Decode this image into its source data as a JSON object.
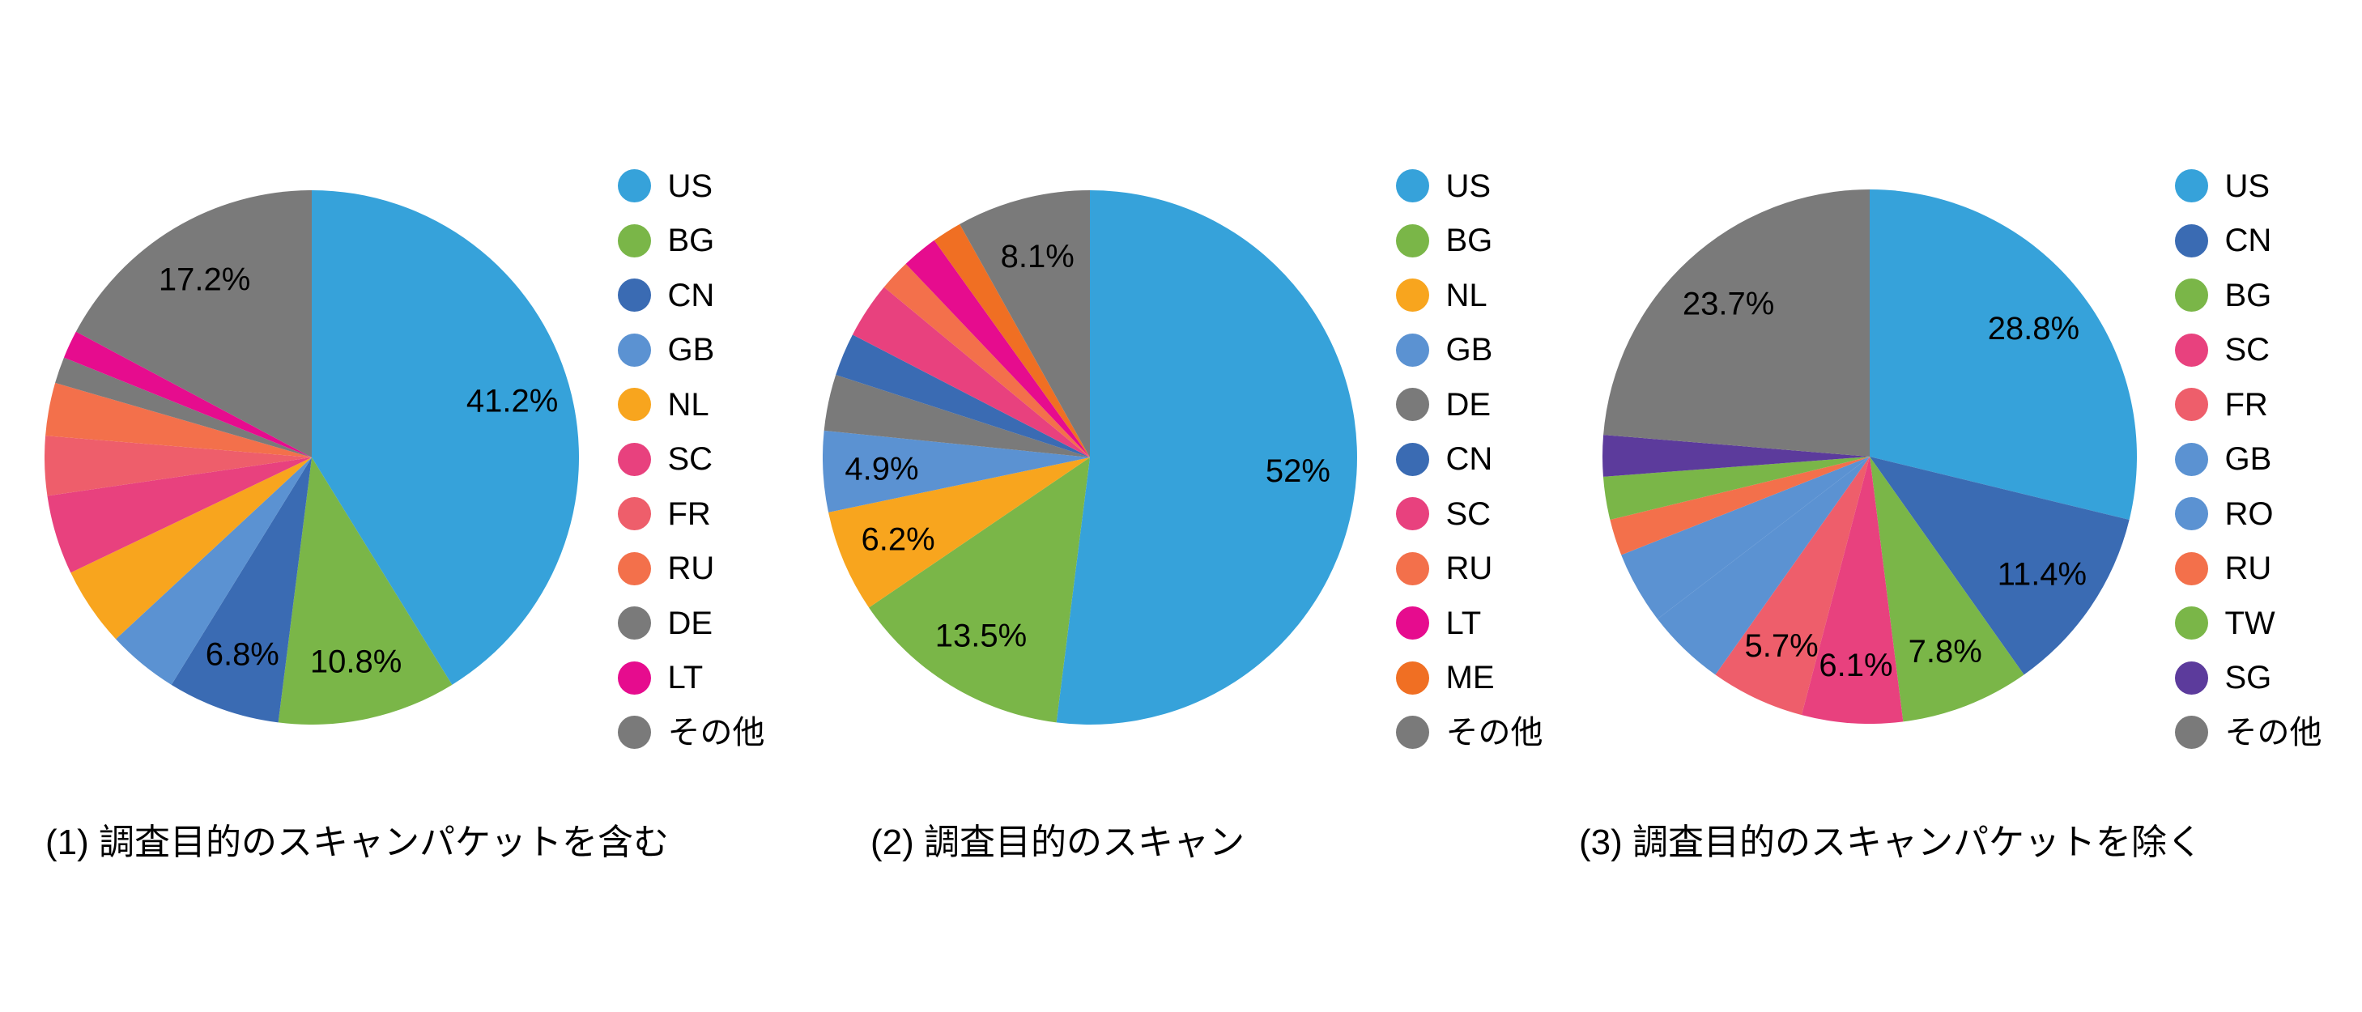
{
  "page": {
    "background": "#ffffff",
    "text_color": "#000000"
  },
  "chart_data": [
    {
      "type": "pie",
      "caption": "(1) 調査目的のスキャンパケットを含む",
      "legend_position": "right",
      "start_angle": "top",
      "direction": "clockwise",
      "slices": [
        {
          "label": "US",
          "key": "us",
          "value": 41.2,
          "display": "41.2%",
          "color": "#36a2da",
          "estimated": false
        },
        {
          "label": "BG",
          "key": "bg",
          "value": 10.8,
          "display": "10.8%",
          "color": "#7ab648",
          "estimated": false
        },
        {
          "label": "CN",
          "key": "cn",
          "value": 6.8,
          "display": "6.8%",
          "color": "#3a6bb3",
          "estimated": false
        },
        {
          "label": "GB",
          "key": "gb",
          "value": 4.3,
          "display": "",
          "color": "#5b92d2",
          "estimated": true
        },
        {
          "label": "NL",
          "key": "nl",
          "value": 4.8,
          "display": "",
          "color": "#f8a51e",
          "estimated": true
        },
        {
          "label": "SC",
          "key": "sc",
          "value": 4.8,
          "display": "",
          "color": "#e8417e",
          "estimated": true
        },
        {
          "label": "FR",
          "key": "fr",
          "value": 3.6,
          "display": "",
          "color": "#ee5e6b",
          "estimated": true
        },
        {
          "label": "RU",
          "key": "ru",
          "value": 3.2,
          "display": "",
          "color": "#f3704b",
          "estimated": true
        },
        {
          "label": "DE",
          "key": "de",
          "value": 1.6,
          "display": "",
          "color": "#7a7a7a",
          "estimated": true
        },
        {
          "label": "LT",
          "key": "lt",
          "value": 1.7,
          "display": "",
          "color": "#e60c8e",
          "estimated": true
        },
        {
          "label": "その他",
          "key": "other",
          "value": 17.2,
          "display": "17.2%",
          "color": "#7a7a7a",
          "estimated": false
        }
      ]
    },
    {
      "type": "pie",
      "caption": "(2) 調査目的のスキャン",
      "legend_position": "right",
      "start_angle": "top",
      "direction": "clockwise",
      "slices": [
        {
          "label": "US",
          "key": "us",
          "value": 52.0,
          "display": "52%",
          "color": "#36a2da",
          "estimated": false
        },
        {
          "label": "BG",
          "key": "bg",
          "value": 13.5,
          "display": "13.5%",
          "color": "#7ab648",
          "estimated": false
        },
        {
          "label": "NL",
          "key": "nl",
          "value": 6.2,
          "display": "6.2%",
          "color": "#f8a51e",
          "estimated": false
        },
        {
          "label": "GB",
          "key": "gb",
          "value": 4.9,
          "display": "4.9%",
          "color": "#5b92d2",
          "estimated": false
        },
        {
          "label": "DE",
          "key": "de",
          "value": 3.4,
          "display": "",
          "color": "#7a7a7a",
          "estimated": true
        },
        {
          "label": "CN",
          "key": "cn",
          "value": 2.6,
          "display": "",
          "color": "#3a6bb3",
          "estimated": true
        },
        {
          "label": "SC",
          "key": "sc",
          "value": 3.4,
          "display": "",
          "color": "#e8417e",
          "estimated": true
        },
        {
          "label": "RU",
          "key": "ru",
          "value": 1.9,
          "display": "",
          "color": "#f3704b",
          "estimated": true
        },
        {
          "label": "LT",
          "key": "lt",
          "value": 2.2,
          "display": "",
          "color": "#e60c8e",
          "estimated": true
        },
        {
          "label": "ME",
          "key": "me",
          "value": 1.8,
          "display": "",
          "color": "#f06f23",
          "estimated": true
        },
        {
          "label": "その他",
          "key": "other",
          "value": 8.1,
          "display": "8.1%",
          "color": "#7a7a7a",
          "estimated": false
        }
      ]
    },
    {
      "type": "pie",
      "caption": "(3) 調査目的のスキャンパケットを除く",
      "legend_position": "right",
      "start_angle": "top",
      "direction": "clockwise",
      "slices": [
        {
          "label": "US",
          "key": "us",
          "value": 28.8,
          "display": "28.8%",
          "color": "#36a2da",
          "estimated": false
        },
        {
          "label": "CN",
          "key": "cn",
          "value": 11.4,
          "display": "11.4%",
          "color": "#3a6bb3",
          "estimated": false
        },
        {
          "label": "BG",
          "key": "bg",
          "value": 7.8,
          "display": "7.8%",
          "color": "#7ab648",
          "estimated": false
        },
        {
          "label": "SC",
          "key": "sc",
          "value": 6.1,
          "display": "6.1%",
          "color": "#e8417e",
          "estimated": false
        },
        {
          "label": "FR",
          "key": "fr",
          "value": 5.7,
          "display": "5.7%",
          "color": "#ee5e6b",
          "estimated": false
        },
        {
          "label": "GB",
          "key": "gb",
          "value": 4.8,
          "display": "",
          "color": "#5b92d2",
          "estimated": true
        },
        {
          "label": "RO",
          "key": "ro",
          "value": 4.4,
          "display": "",
          "color": "#5b92d2",
          "estimated": true
        },
        {
          "label": "RU",
          "key": "ru",
          "value": 2.2,
          "display": "",
          "color": "#f3704b",
          "estimated": true
        },
        {
          "label": "TW",
          "key": "tw",
          "value": 2.6,
          "display": "",
          "color": "#7ab648",
          "estimated": true
        },
        {
          "label": "SG",
          "key": "sg",
          "value": 2.5,
          "display": "",
          "color": "#5c3b9c",
          "estimated": true
        },
        {
          "label": "その他",
          "key": "other",
          "value": 23.7,
          "display": "23.7%",
          "color": "#7a7a7a",
          "estimated": false
        }
      ]
    }
  ]
}
